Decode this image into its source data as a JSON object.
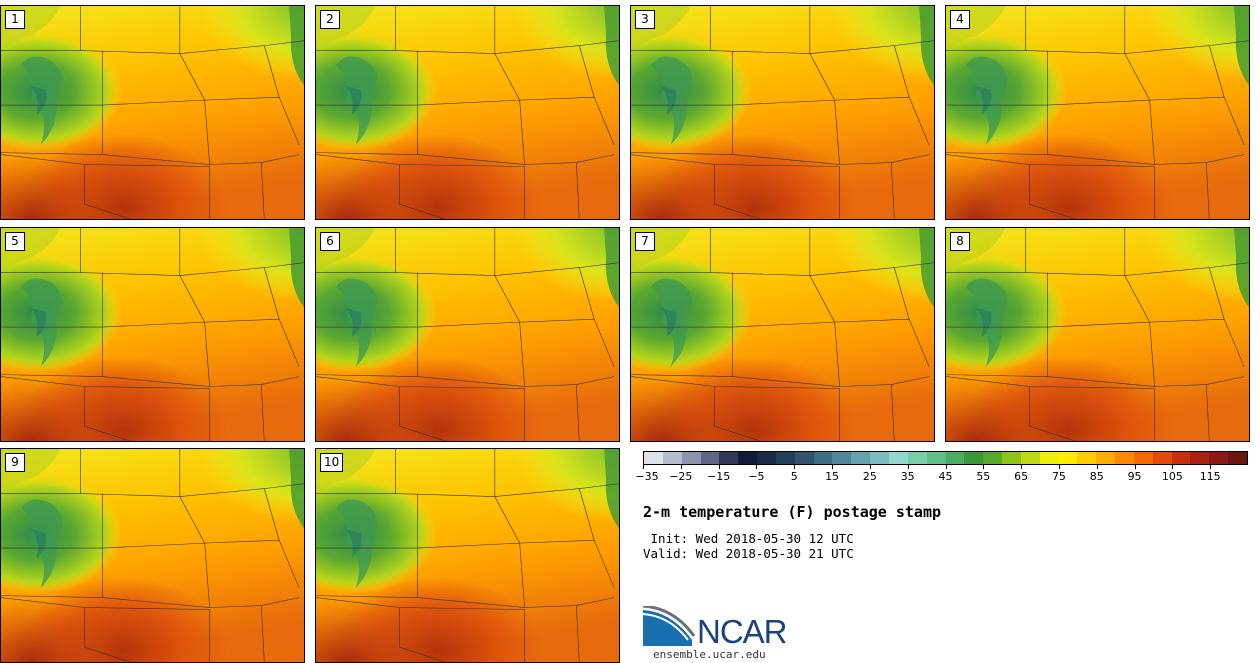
{
  "panels": [
    {
      "label": "1"
    },
    {
      "label": "2"
    },
    {
      "label": "3"
    },
    {
      "label": "4"
    },
    {
      "label": "5"
    },
    {
      "label": "6"
    },
    {
      "label": "7"
    },
    {
      "label": "8"
    },
    {
      "label": "9"
    },
    {
      "label": "10"
    }
  ],
  "colorbar": {
    "colors": [
      "#dde1ea",
      "#b6bccb",
      "#8d95ab",
      "#5e6783",
      "#2f3856",
      "#0f1a36",
      "#172a45",
      "#233e58",
      "#2f546c",
      "#3d6d83",
      "#4f8799",
      "#64a2ad",
      "#7bbdbf",
      "#93d6cf",
      "#7ccda4",
      "#62be86",
      "#4cab64",
      "#3d9637",
      "#55a82a",
      "#8cc31e",
      "#bfd913",
      "#eeee08",
      "#ffec00",
      "#ffcd00",
      "#ffad00",
      "#ff8a00",
      "#f26a08",
      "#e04a0c",
      "#c5300d",
      "#a82010",
      "#8a1a12",
      "#6b1710"
    ],
    "tick_labels": [
      "-35",
      "-25",
      "-15",
      "-5",
      "5",
      "15",
      "25",
      "35",
      "45",
      "55",
      "65",
      "75",
      "85",
      "95",
      "105",
      "115"
    ]
  },
  "title": "2-m temperature (F) postage stamp",
  "init_line": " Init: Wed 2018-05-30 12 UTC",
  "valid_line": "Valid: Wed 2018-05-30 21 UTC",
  "logo": {
    "text": "NCAR",
    "url": "ensemble.ucar.edu",
    "accent": "#1a6fb0"
  }
}
